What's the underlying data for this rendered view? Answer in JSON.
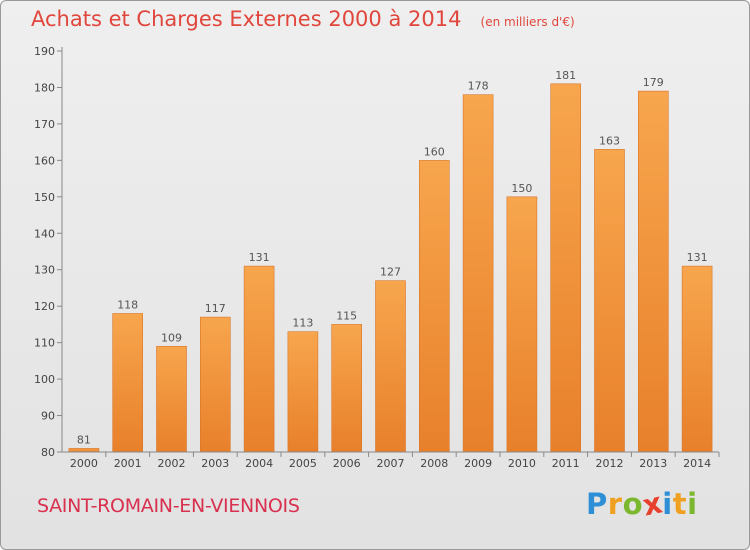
{
  "header": {
    "title": "Achats et Charges Externes 2000 à 2014",
    "subtitle": "(en milliers d'€)"
  },
  "footer": {
    "commune": "SAINT-ROMAIN-EN-VIENNOIS",
    "logo_text": "Proxiti"
  },
  "colors": {
    "bar_top": "#f7a64e",
    "bar_bottom": "#e8802a",
    "title": "#e0463c",
    "commune": "#d8304e"
  },
  "chart_data": {
    "type": "bar",
    "title": "Achats et Charges Externes 2000 à 2014",
    "subtitle": "(en milliers d'€)",
    "categories": [
      "2000",
      "2001",
      "2002",
      "2003",
      "2004",
      "2005",
      "2006",
      "2007",
      "2008",
      "2009",
      "2010",
      "2011",
      "2012",
      "2013",
      "2014"
    ],
    "values": [
      81,
      118,
      109,
      117,
      131,
      113,
      115,
      127,
      160,
      178,
      150,
      181,
      163,
      179,
      131
    ],
    "ylim": [
      80,
      190
    ],
    "yticks": [
      80,
      90,
      100,
      110,
      120,
      130,
      140,
      150,
      160,
      170,
      180,
      190
    ],
    "grid": false,
    "legend": "none"
  }
}
